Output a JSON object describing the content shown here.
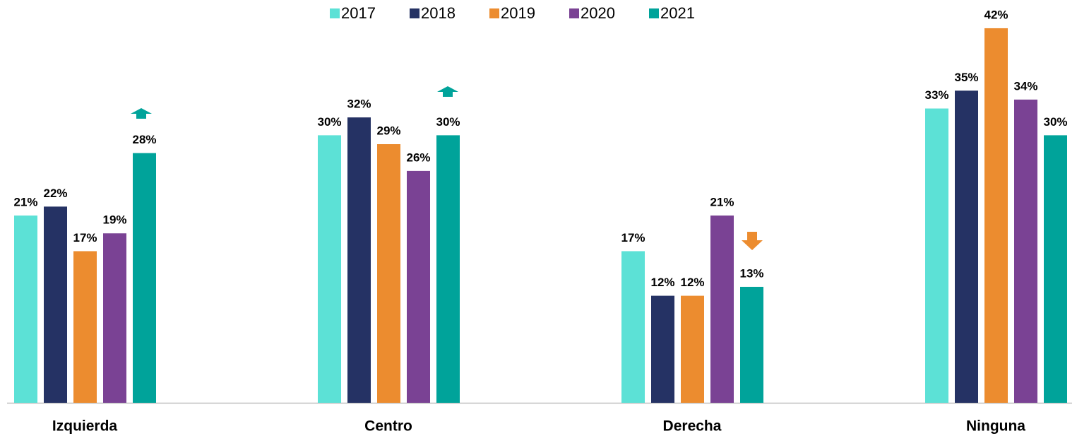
{
  "chart_data": {
    "type": "bar",
    "categories": [
      "Izquierda",
      "Centro",
      "Derecha",
      "Ninguna"
    ],
    "series": [
      {
        "name": "2017",
        "color": "#5ce1d6",
        "values": [
          21,
          30,
          17,
          33
        ],
        "value_labels": [
          "21%",
          "30%",
          "17%",
          "33%"
        ]
      },
      {
        "name": "2018",
        "color": "#253264",
        "values": [
          22,
          32,
          12,
          35
        ],
        "value_labels": [
          "22%",
          "32%",
          "12%",
          "35%"
        ]
      },
      {
        "name": "2019",
        "color": "#ec8c2f",
        "values": [
          17,
          29,
          12,
          42
        ],
        "value_labels": [
          "17%",
          "29%",
          "12%",
          "42%"
        ]
      },
      {
        "name": "2020",
        "color": "#7a4294",
        "values": [
          19,
          26,
          21,
          34
        ],
        "value_labels": [
          "19%",
          "26%",
          "21%",
          "34%"
        ]
      },
      {
        "name": "2021",
        "color": "#00a39a",
        "values": [
          28,
          30,
          13,
          30
        ],
        "value_labels": [
          "28%",
          "30%",
          "13%",
          "30%"
        ]
      }
    ],
    "legend": "top"
  }
}
